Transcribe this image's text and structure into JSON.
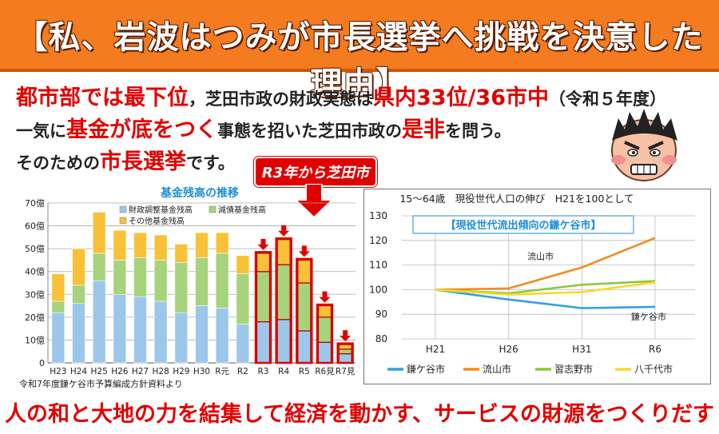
{
  "banner": {
    "title": "【私、岩波はつみが市長選挙へ挑戦を決意した理由】"
  },
  "intro": {
    "line1": [
      {
        "text": "都市部では最下位",
        "style": "big red"
      },
      {
        "text": "，芝田市政の財政実態は",
        "style": "small"
      },
      {
        "text": "県内33位/36市中",
        "style": "big red"
      },
      {
        "text": "（令和５年度）",
        "style": "small"
      }
    ],
    "line2": [
      {
        "text": "一気に",
        "style": "small"
      },
      {
        "text": "基金が底をつく",
        "style": "big red"
      },
      {
        "text": "事態を招いた芝田市政の",
        "style": "small"
      },
      {
        "text": "是非",
        "style": "big red"
      },
      {
        "text": "を問う。",
        "style": "small"
      }
    ],
    "line3": [
      {
        "text": "そのための",
        "style": "small"
      },
      {
        "text": "市長選挙",
        "style": "big red"
      },
      {
        "text": "です。",
        "style": "small"
      }
    ]
  },
  "callout": {
    "text": "R3年から芝田市政"
  },
  "icons": {
    "face": "angry-face-icon",
    "down_arrow": "down-arrow-icon"
  },
  "footer": {
    "text": "人の和と大地の力を結集して経済を動かす、サービスの財源をつくりだす"
  },
  "chart_data": [
    {
      "type": "bar",
      "stacked": true,
      "title": "基金残高の推移",
      "categories": [
        "H23",
        "H24",
        "H25",
        "H26",
        "H27",
        "H28",
        "H29",
        "H30",
        "R元",
        "R2",
        "R3",
        "R4",
        "R5",
        "R6見",
        "R7見"
      ],
      "y_tick_labels": [
        "0",
        "10億",
        "20億",
        "30億",
        "40億",
        "50億",
        "60億",
        "70億"
      ],
      "ylim": [
        0,
        70
      ],
      "series": [
        {
          "name": "財政調整基金残高",
          "color": "#9cc7ea",
          "values": [
            22,
            26,
            36,
            30,
            29,
            27,
            22,
            25,
            24,
            17,
            18,
            19,
            14,
            9,
            4
          ]
        },
        {
          "name": "減債基金残高",
          "color": "#a6d37b",
          "values": [
            5,
            8,
            12,
            15,
            17,
            18,
            22,
            21,
            24,
            22,
            22,
            24,
            21,
            11,
            2
          ]
        },
        {
          "name": "その他基金残高",
          "color": "#f8c137",
          "values": [
            12,
            16,
            18,
            13,
            11,
            11,
            8,
            11,
            9,
            8,
            8,
            11,
            10,
            5,
            2
          ]
        }
      ],
      "highlight_from": "R3",
      "highlight_color": "#e10000",
      "source_note": "令和7年度鎌ケ谷市予算編成方針資料より",
      "legend_placement": "top-left",
      "grid": true
    },
    {
      "type": "line",
      "title": "15～64歳　現役世代人口の伸び　H21を100として",
      "subtitle": "【現役世代流出傾向の鎌ケ谷市】",
      "x": [
        "H21",
        "H26",
        "H31",
        "R6"
      ],
      "ylim": [
        80,
        130
      ],
      "y_ticks": [
        80,
        90,
        100,
        110,
        120,
        130
      ],
      "series": [
        {
          "name": "鎌ケ谷市",
          "color": "#2fa3e0",
          "values": [
            100,
            96,
            92.5,
            93
          ]
        },
        {
          "name": "流山市",
          "color": "#f28c1e",
          "values": [
            100,
            100.5,
            109,
            121
          ]
        },
        {
          "name": "習志野市",
          "color": "#8cc63e",
          "values": [
            100,
            98.5,
            102,
            103.5
          ]
        },
        {
          "name": "八千代市",
          "color": "#fbd72b",
          "values": [
            100,
            98,
            99,
            103
          ]
        }
      ],
      "annotations": [
        {
          "text": "流山市",
          "series": "流山市"
        },
        {
          "text": "鎌ケ谷市",
          "series": "鎌ケ谷市"
        }
      ],
      "legend_placement": "bottom",
      "grid": true
    }
  ]
}
